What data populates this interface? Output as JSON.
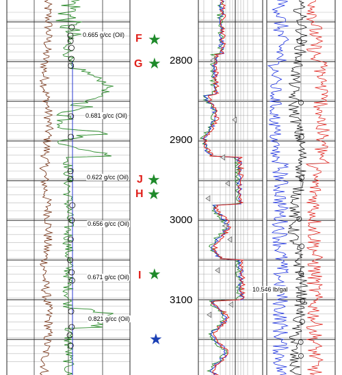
{
  "depth_labels": [
    "2800",
    "2900",
    "3000",
    "3100"
  ],
  "annotations": [
    {
      "text": "0.665 g/cc (Oil)"
    },
    {
      "text": "0.681 g/cc (Oil)"
    },
    {
      "text": "0.622 g/cc (Oil)"
    },
    {
      "text": "0.656 g/cc (Oil)"
    },
    {
      "text": "0.671 g/cc (Oil)"
    },
    {
      "text": "0.821 g/cc (Oil)"
    }
  ],
  "markers": [
    {
      "letter": "F",
      "star_color": "#1e8a2a"
    },
    {
      "letter": "G",
      "star_color": "#1e8a2a"
    },
    {
      "letter": "J",
      "star_color": "#1e8a2a"
    },
    {
      "letter": "H",
      "star_color": "#1e8a2a"
    },
    {
      "letter": "I",
      "star_color": "#1e8a2a"
    },
    {
      "letter": "",
      "star_color": "#1a3fb5"
    }
  ],
  "mud_label": "10.546 lb/gal",
  "colors": {
    "marker_letter": "#e0201a",
    "gr_curve": "#7a3a1e",
    "green_curve": "#2a8a2a",
    "red_curve": "#e0201a",
    "blue_curve": "#1a2fe0",
    "black_curve": "#111111"
  }
}
